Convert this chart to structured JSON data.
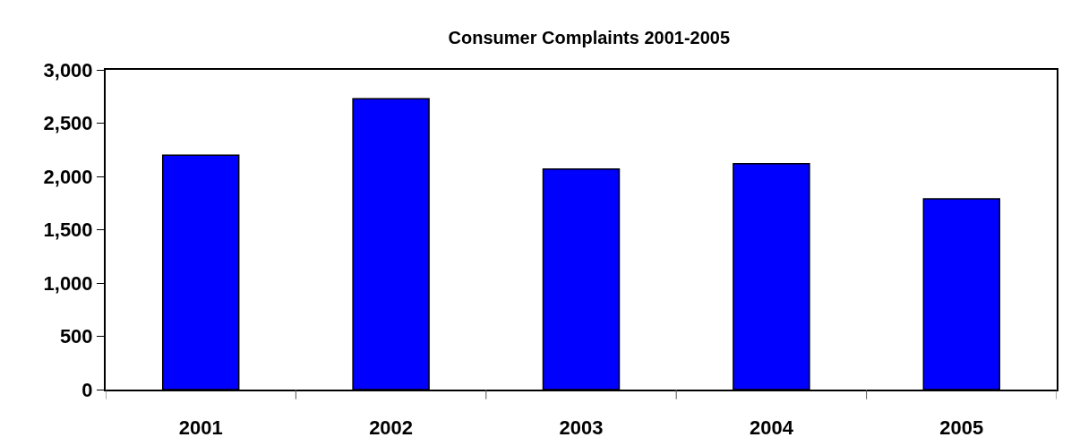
{
  "chart_data": {
    "type": "bar",
    "title": "Consumer Complaints 2001-2005",
    "categories": [
      "2001",
      "2002",
      "2003",
      "2004",
      "2005"
    ],
    "values": [
      2200,
      2730,
      2070,
      2120,
      1790
    ],
    "color": "#0000ff",
    "ylim": [
      0,
      3000
    ],
    "yticks": [
      {
        "value": 0,
        "label": "0"
      },
      {
        "value": 500,
        "label": "500"
      },
      {
        "value": 1000,
        "label": "1,000"
      },
      {
        "value": 1500,
        "label": "1,500"
      },
      {
        "value": 2000,
        "label": "2,000"
      },
      {
        "value": 2500,
        "label": "2,500"
      },
      {
        "value": 3000,
        "label": "3,000"
      }
    ],
    "grid": false
  }
}
